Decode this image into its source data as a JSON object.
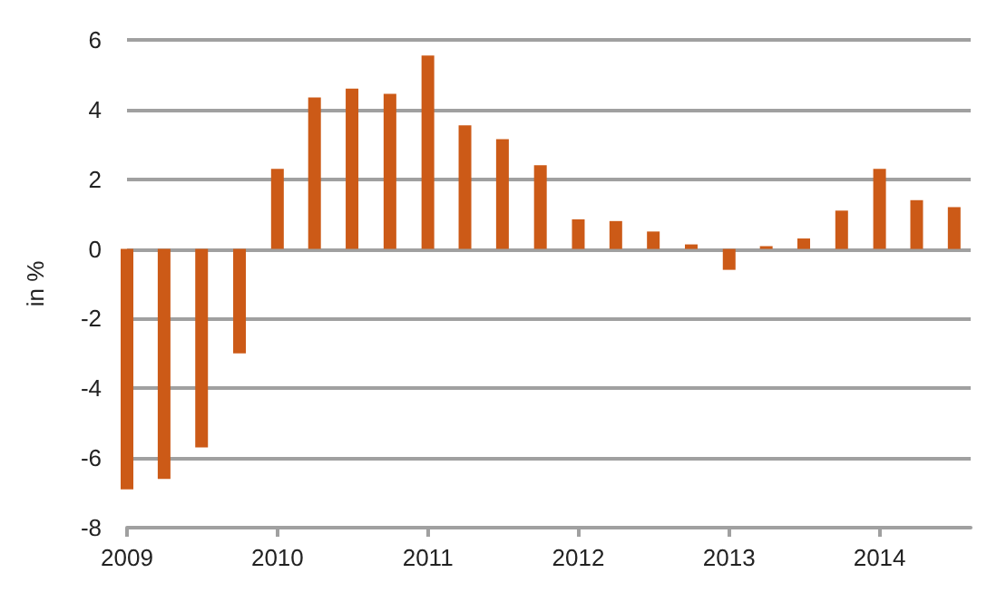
{
  "chart_data": {
    "type": "bar",
    "ylabel": "in %",
    "x": [
      "2009-01",
      "2009-04",
      "2009-07",
      "2009-10",
      "2010-01",
      "2010-04",
      "2010-07",
      "2010-10",
      "2011-01",
      "2011-04",
      "2011-07",
      "2011-10",
      "2012-01",
      "2012-04",
      "2012-07",
      "2012-10",
      "2013-01",
      "2013-04",
      "2013-07",
      "2013-10",
      "2014-01",
      "2014-04",
      "2014-07"
    ],
    "values": [
      -6.9,
      -6.6,
      -5.7,
      -3.0,
      2.3,
      4.35,
      4.6,
      4.45,
      5.55,
      3.55,
      3.15,
      2.4,
      0.85,
      0.8,
      0.5,
      0.13,
      -0.6,
      0.08,
      0.3,
      1.1,
      2.3,
      1.4,
      1.2
    ],
    "color": "#cc5a17",
    "xlim": [
      "2009-01",
      "2014-08-10"
    ],
    "xticks": [
      {
        "value": "2009-01",
        "label": "2009"
      },
      {
        "value": "2010-01",
        "label": "2010"
      },
      {
        "value": "2011-01",
        "label": "2011"
      },
      {
        "value": "2012-01",
        "label": "2012"
      },
      {
        "value": "2013-01",
        "label": "2013"
      },
      {
        "value": "2014-01",
        "label": "2014"
      }
    ],
    "ylim": [
      -8,
      6
    ],
    "yticks": [
      -8,
      -6,
      -4,
      -2,
      0,
      2,
      4,
      6
    ],
    "grid": "y"
  }
}
